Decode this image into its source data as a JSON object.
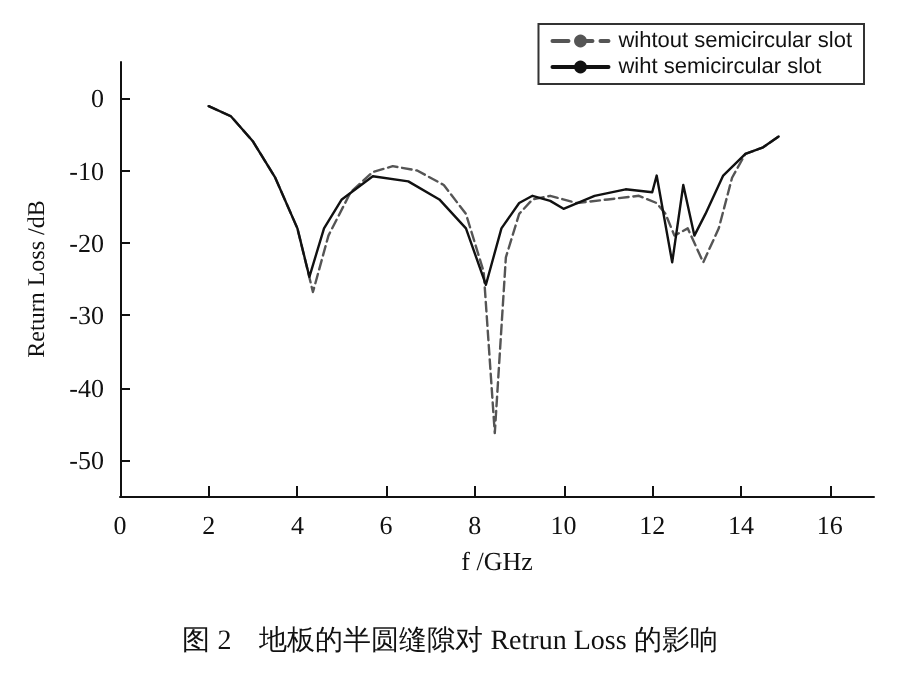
{
  "chart_data": {
    "type": "line",
    "title": "图 2　地板的半圆缝隙对 Retrun Loss 的影响",
    "xlabel": "f /GHz",
    "ylabel": "Return Loss /dB",
    "xlim": [
      0,
      17
    ],
    "xticks": [
      0,
      2,
      4,
      6,
      8,
      10,
      12,
      14,
      16
    ],
    "ylim": [
      -55,
      5
    ],
    "yticks": [
      -50,
      -40,
      -30,
      -20,
      -10,
      0
    ],
    "grid": false,
    "legend": "top right",
    "marker": "none",
    "series": [
      {
        "name": "wihtout semicircular slot",
        "color": "#555555",
        "line_style": "dashed",
        "x": [
          2.0,
          2.5,
          3.0,
          3.5,
          4.0,
          4.35,
          4.7,
          5.2,
          5.7,
          6.15,
          6.7,
          7.3,
          7.8,
          8.2,
          8.45,
          8.7,
          9.0,
          9.3,
          9.7,
          10.3,
          11.0,
          11.7,
          12.1,
          12.3,
          12.5,
          12.8,
          13.15,
          13.5,
          13.8,
          14.1,
          14.5,
          14.85
        ],
        "values": [
          -1.1,
          -2.5,
          -6,
          -11,
          -18,
          -26.8,
          -19,
          -13,
          -10.2,
          -9.4,
          -10,
          -12,
          -16,
          -24,
          -46.3,
          -22,
          -16,
          -14,
          -13.5,
          -14.5,
          -14,
          -13.5,
          -14.5,
          -16,
          -19,
          -18,
          -22.7,
          -18,
          -11,
          -7.7,
          -6.8,
          -5.3
        ]
      },
      {
        "name": "wiht semicircular slot",
        "color": "#111111",
        "line_style": "solid",
        "x": [
          2.0,
          2.5,
          3.0,
          3.5,
          4.0,
          4.27,
          4.6,
          5.0,
          5.7,
          6.5,
          7.2,
          7.8,
          8.25,
          8.6,
          9.0,
          9.3,
          9.7,
          10.0,
          10.7,
          11.4,
          12.0,
          12.1,
          12.45,
          12.7,
          12.95,
          13.2,
          13.6,
          14.1,
          14.5,
          14.85
        ],
        "values": [
          -1.1,
          -2.5,
          -6,
          -11,
          -18,
          -24.7,
          -18,
          -14,
          -10.8,
          -11.5,
          -14,
          -18,
          -25.8,
          -18,
          -14.5,
          -13.5,
          -14.2,
          -15.3,
          -13.5,
          -12.6,
          -13,
          -10.7,
          -22.7,
          -12,
          -19,
          -16,
          -10.7,
          -7.7,
          -6.8,
          -5.3
        ]
      }
    ]
  }
}
